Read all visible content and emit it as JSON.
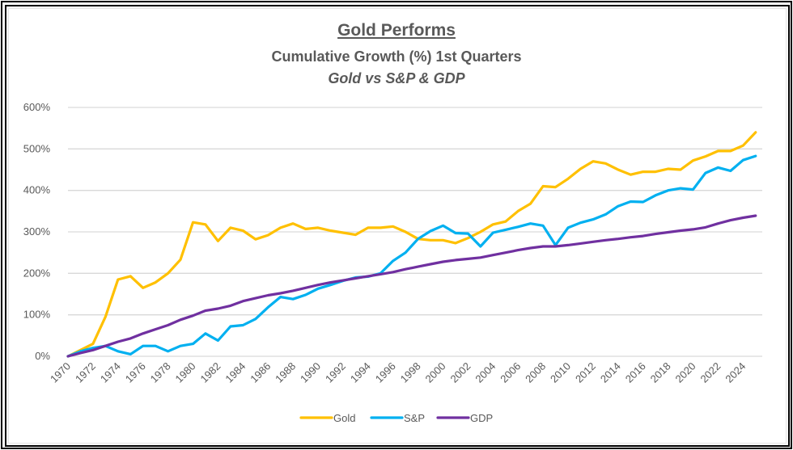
{
  "chart_data": {
    "type": "line",
    "title": "Gold Performs",
    "subtitle": "Cumulative Growth (%) 1st Quarters",
    "subtitle2": "Gold vs S&P & GDP",
    "xlabel": "",
    "ylabel": "",
    "ylim": [
      0,
      600
    ],
    "y_ticks": [
      0,
      100,
      200,
      300,
      400,
      500,
      600
    ],
    "y_tick_labels": [
      "0%",
      "100%",
      "200%",
      "300%",
      "400%",
      "500%",
      "600%"
    ],
    "x": [
      1970,
      1971,
      1972,
      1973,
      1974,
      1975,
      1976,
      1977,
      1978,
      1979,
      1980,
      1981,
      1982,
      1983,
      1984,
      1985,
      1986,
      1987,
      1988,
      1989,
      1990,
      1991,
      1992,
      1993,
      1994,
      1995,
      1996,
      1997,
      1998,
      1999,
      2000,
      2001,
      2002,
      2003,
      2004,
      2005,
      2006,
      2007,
      2008,
      2009,
      2010,
      2011,
      2012,
      2013,
      2014,
      2015,
      2016,
      2017,
      2018,
      2019,
      2020,
      2021,
      2022,
      2023,
      2024,
      2025
    ],
    "x_tick_labels": [
      "1970",
      "1972",
      "1974",
      "1976",
      "1978",
      "1980",
      "1982",
      "1984",
      "1986",
      "1988",
      "1990",
      "1992",
      "1994",
      "1996",
      "1998",
      "2000",
      "2002",
      "2004",
      "2006",
      "2008",
      "2010",
      "2012",
      "2014",
      "2016",
      "2018",
      "2020",
      "2022",
      "2024"
    ],
    "grid": true,
    "legend_position": "bottom",
    "series": [
      {
        "name": "Gold",
        "color": "#FFC000",
        "values": [
          0,
          15,
          30,
          95,
          185,
          193,
          165,
          178,
          200,
          233,
          323,
          318,
          278,
          310,
          303,
          282,
          292,
          310,
          320,
          307,
          310,
          303,
          298,
          293,
          310,
          310,
          313,
          300,
          283,
          280,
          280,
          273,
          285,
          300,
          318,
          325,
          350,
          368,
          410,
          408,
          428,
          452,
          470,
          465,
          450,
          438,
          445,
          445,
          452,
          450,
          472,
          482,
          495,
          495,
          508,
          540
        ]
      },
      {
        "name": "S&P",
        "color": "#00B0F0",
        "values": [
          0,
          12,
          20,
          25,
          12,
          5,
          25,
          25,
          12,
          25,
          30,
          55,
          38,
          72,
          75,
          90,
          118,
          143,
          138,
          148,
          163,
          172,
          182,
          190,
          192,
          200,
          230,
          250,
          283,
          302,
          315,
          297,
          296,
          265,
          298,
          305,
          312,
          320,
          315,
          268,
          310,
          322,
          330,
          342,
          362,
          373,
          372,
          388,
          400,
          405,
          402,
          442,
          455,
          447,
          473,
          483
        ]
      },
      {
        "name": "GDP",
        "color": "#7030A0",
        "values": [
          0,
          8,
          15,
          25,
          35,
          43,
          55,
          65,
          75,
          88,
          98,
          110,
          115,
          122,
          133,
          140,
          147,
          152,
          158,
          165,
          172,
          178,
          183,
          188,
          193,
          198,
          203,
          210,
          216,
          222,
          228,
          232,
          235,
          238,
          244,
          250,
          256,
          261,
          265,
          265,
          268,
          272,
          276,
          280,
          283,
          287,
          290,
          295,
          299,
          303,
          306,
          311,
          320,
          328,
          334,
          339
        ]
      }
    ]
  }
}
